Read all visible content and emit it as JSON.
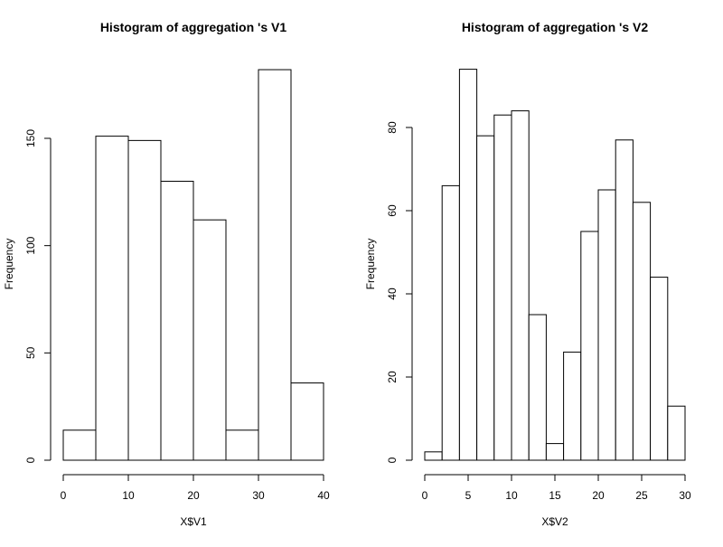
{
  "chart_data": [
    {
      "type": "bar",
      "title": "Histogram of  aggregation 's V1",
      "xlabel": "X$V1",
      "ylabel": "Frequency",
      "bin_edges": [
        0,
        5,
        10,
        15,
        20,
        25,
        30,
        35,
        40
      ],
      "values": [
        14,
        151,
        149,
        130,
        112,
        14,
        182,
        36
      ],
      "xlim": [
        0,
        40
      ],
      "ylim": [
        0,
        190
      ],
      "x_ticks": [
        "0",
        "10",
        "20",
        "30",
        "40"
      ],
      "y_ticks": [
        "0",
        "50",
        "100",
        "150"
      ]
    },
    {
      "type": "bar",
      "title": "Histogram of  aggregation 's V2",
      "xlabel": "X$V2",
      "ylabel": "Frequency",
      "bin_edges": [
        0,
        2,
        4,
        6,
        8,
        10,
        12,
        14,
        16,
        18,
        20,
        22,
        24,
        26,
        28,
        30
      ],
      "values": [
        2,
        66,
        94,
        78,
        83,
        84,
        35,
        4,
        26,
        55,
        65,
        77,
        62,
        44,
        13
      ],
      "xlim": [
        0,
        30
      ],
      "ylim": [
        0,
        95
      ],
      "x_ticks": [
        "0",
        "5",
        "10",
        "15",
        "20",
        "25",
        "30"
      ],
      "y_ticks": [
        "0",
        "20",
        "40",
        "60",
        "80"
      ]
    }
  ]
}
